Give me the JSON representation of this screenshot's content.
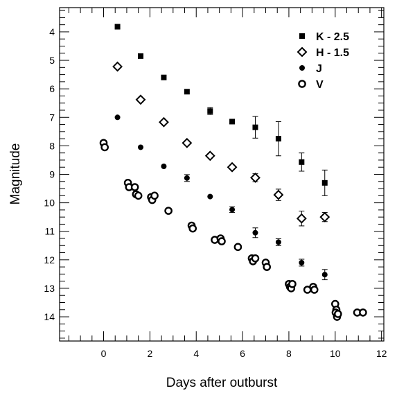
{
  "chart_data": {
    "type": "scatter",
    "xlabel": "Days after outburst",
    "ylabel": "Magnitude",
    "xlim": [
      -1.9,
      12.1
    ],
    "ylim": [
      14.85,
      3.15
    ],
    "y_inverted": true,
    "xticks": [
      "0",
      "2",
      "4",
      "6",
      "8",
      "10",
      "12"
    ],
    "yticks": [
      "4",
      "5",
      "6",
      "7",
      "8",
      "9",
      "10",
      "11",
      "12",
      "13",
      "14"
    ],
    "legend_position": "top-right",
    "grid": false,
    "series": [
      {
        "name": "K - 2.5",
        "marker": "filled-square",
        "points": [
          {
            "x": 0.6,
            "y": 3.82
          },
          {
            "x": 1.6,
            "y": 4.85
          },
          {
            "x": 2.6,
            "y": 5.6
          },
          {
            "x": 3.6,
            "y": 6.1
          },
          {
            "x": 4.6,
            "y": 6.78,
            "err": 0.12
          },
          {
            "x": 5.55,
            "y": 7.15
          },
          {
            "x": 6.55,
            "y": 7.35,
            "err": 0.38
          },
          {
            "x": 7.55,
            "y": 7.75,
            "err": 0.6
          },
          {
            "x": 8.55,
            "y": 8.57,
            "err": 0.32
          },
          {
            "x": 9.55,
            "y": 9.3,
            "err": 0.45
          }
        ]
      },
      {
        "name": "H - 1.5",
        "marker": "open-diamond",
        "points": [
          {
            "x": 0.6,
            "y": 5.22
          },
          {
            "x": 1.6,
            "y": 6.38
          },
          {
            "x": 2.6,
            "y": 7.17
          },
          {
            "x": 3.6,
            "y": 7.9
          },
          {
            "x": 4.6,
            "y": 8.35
          },
          {
            "x": 5.55,
            "y": 8.75
          },
          {
            "x": 6.55,
            "y": 9.12,
            "err": 0.14
          },
          {
            "x": 7.55,
            "y": 9.72,
            "err": 0.2
          },
          {
            "x": 8.55,
            "y": 10.55,
            "err": 0.26
          },
          {
            "x": 9.55,
            "y": 10.5,
            "err": 0.16
          }
        ]
      },
      {
        "name": "J",
        "marker": "filled-circle",
        "points": [
          {
            "x": 0.6,
            "y": 7.0
          },
          {
            "x": 1.6,
            "y": 8.05
          },
          {
            "x": 2.6,
            "y": 8.72
          },
          {
            "x": 3.6,
            "y": 9.13,
            "err": 0.12
          },
          {
            "x": 4.6,
            "y": 9.78
          },
          {
            "x": 5.55,
            "y": 10.24,
            "err": 0.1
          },
          {
            "x": 6.55,
            "y": 11.05,
            "err": 0.17
          },
          {
            "x": 7.55,
            "y": 11.38,
            "err": 0.12
          },
          {
            "x": 8.55,
            "y": 12.1,
            "err": 0.12
          },
          {
            "x": 9.55,
            "y": 12.52,
            "err": 0.18
          }
        ]
      },
      {
        "name": "V",
        "marker": "open-circle",
        "points": [
          {
            "x": 0.0,
            "y": 7.9
          },
          {
            "x": 0.05,
            "y": 8.05
          },
          {
            "x": 1.05,
            "y": 9.3
          },
          {
            "x": 1.1,
            "y": 9.45
          },
          {
            "x": 1.35,
            "y": 9.45
          },
          {
            "x": 1.4,
            "y": 9.7
          },
          {
            "x": 1.5,
            "y": 9.75
          },
          {
            "x": 2.05,
            "y": 9.8
          },
          {
            "x": 2.1,
            "y": 9.9
          },
          {
            "x": 2.2,
            "y": 9.75
          },
          {
            "x": 2.8,
            "y": 10.28
          },
          {
            "x": 3.8,
            "y": 10.8
          },
          {
            "x": 3.85,
            "y": 10.9
          },
          {
            "x": 4.8,
            "y": 11.3
          },
          {
            "x": 5.05,
            "y": 11.25
          },
          {
            "x": 5.1,
            "y": 11.35
          },
          {
            "x": 5.8,
            "y": 11.55
          },
          {
            "x": 6.4,
            "y": 11.95
          },
          {
            "x": 6.45,
            "y": 12.05
          },
          {
            "x": 6.55,
            "y": 11.95
          },
          {
            "x": 7.0,
            "y": 12.1
          },
          {
            "x": 7.05,
            "y": 12.25
          },
          {
            "x": 8.0,
            "y": 12.85
          },
          {
            "x": 8.05,
            "y": 12.95
          },
          {
            "x": 8.1,
            "y": 13.0
          },
          {
            "x": 8.15,
            "y": 12.85
          },
          {
            "x": 8.8,
            "y": 13.05
          },
          {
            "x": 9.05,
            "y": 12.95
          },
          {
            "x": 9.1,
            "y": 13.05
          },
          {
            "x": 10.0,
            "y": 13.55
          },
          {
            "x": 10.05,
            "y": 13.75
          },
          {
            "x": 10.02,
            "y": 13.85
          },
          {
            "x": 10.08,
            "y": 14.0
          },
          {
            "x": 10.12,
            "y": 13.9
          },
          {
            "x": 10.95,
            "y": 13.85
          },
          {
            "x": 11.2,
            "y": 13.85
          }
        ]
      }
    ]
  }
}
